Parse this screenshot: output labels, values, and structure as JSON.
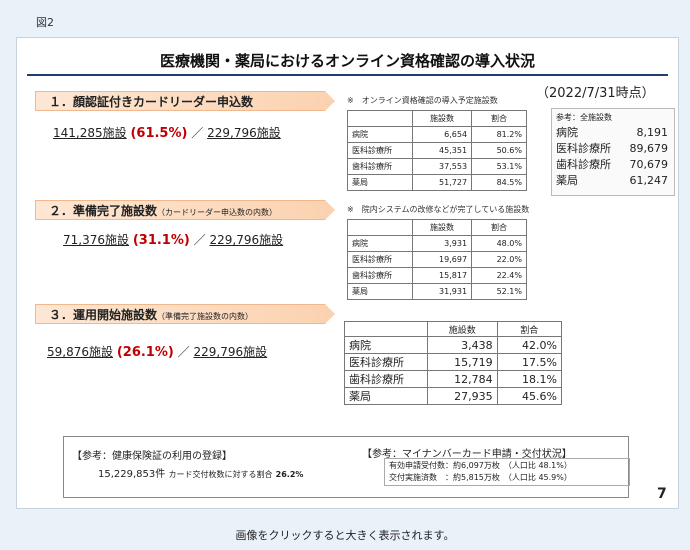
{
  "figure_label": "図2",
  "title": "医療機関・薬局におけるオンライン資格確認の導入状況",
  "date": "（2022/7/31時点）",
  "sections": [
    {
      "heading": "１．顔認証付きカードリーダー申込数",
      "heading_note": "",
      "stat_count": "141,285施設",
      "stat_pct": "(61.5%)",
      "stat_sep": "／",
      "stat_total": "229,796施設",
      "table_note": "※　オンライン資格確認の導入予定施設数",
      "table_headers": [
        "施設数",
        "割合"
      ],
      "rows": [
        {
          "label": "病院",
          "count": "6,654",
          "ratio": "81.2%"
        },
        {
          "label": "医科診療所",
          "count": "45,351",
          "ratio": "50.6%"
        },
        {
          "label": "歯科診療所",
          "count": "37,553",
          "ratio": "53.1%"
        },
        {
          "label": "薬局",
          "count": "51,727",
          "ratio": "84.5%"
        }
      ]
    },
    {
      "heading": "２．準備完了施設数",
      "heading_note": "（カードリーダー申込数の内数）",
      "stat_count": "71,376施設",
      "stat_pct": "(31.1%)",
      "stat_sep": "／",
      "stat_total": "229,796施設",
      "table_note": "※　院内システムの改修などが完了している施設数",
      "table_headers": [
        "施設数",
        "割合"
      ],
      "rows": [
        {
          "label": "病院",
          "count": "3,931",
          "ratio": "48.0%"
        },
        {
          "label": "医科診療所",
          "count": "19,697",
          "ratio": "22.0%"
        },
        {
          "label": "歯科診療所",
          "count": "15,817",
          "ratio": "22.4%"
        },
        {
          "label": "薬局",
          "count": "31,931",
          "ratio": "52.1%"
        }
      ]
    },
    {
      "heading": "３．運用開始施設数",
      "heading_note": "（準備完了施設数の内数）",
      "stat_count": "59,876施設",
      "stat_pct": "(26.1%)",
      "stat_sep": "／",
      "stat_total": "229,796施設",
      "table_note": "",
      "table_headers": [
        "施設数",
        "割合"
      ],
      "rows": [
        {
          "label": "病院",
          "count": "3,438",
          "ratio": "42.0%"
        },
        {
          "label": "医科診療所",
          "count": "15,719",
          "ratio": "17.5%"
        },
        {
          "label": "歯科診療所",
          "count": "12,784",
          "ratio": "18.1%"
        },
        {
          "label": "薬局",
          "count": "27,935",
          "ratio": "45.6%"
        }
      ]
    }
  ],
  "reference_all": {
    "heading": "参考：全施設数",
    "rows": [
      {
        "label": "病院",
        "count": "8,191"
      },
      {
        "label": "医科診療所",
        "count": "89,679"
      },
      {
        "label": "歯科診療所",
        "count": "70,679"
      },
      {
        "label": "薬局",
        "count": "61,247"
      }
    ]
  },
  "bottom": {
    "left_title": "【参考：健康保険証の利用の登録】",
    "left_value": "15,229,853件",
    "left_ratio_label": "カード交付枚数に対する割合",
    "left_ratio": "26.2%",
    "right_title": "【参考：マイナンバーカード申請・交付状況】",
    "right_rows": [
      {
        "label": "有効申請受付数：",
        "value": "約6,097万枚",
        "ratio": "（人口比 48.1%）"
      },
      {
        "label": "交付実施済数　：",
        "value": "約5,815万枚",
        "ratio": "（人口比 45.9%）"
      }
    ]
  },
  "page_number": "7",
  "caption": "画像をクリックすると大きく表示されます。"
}
